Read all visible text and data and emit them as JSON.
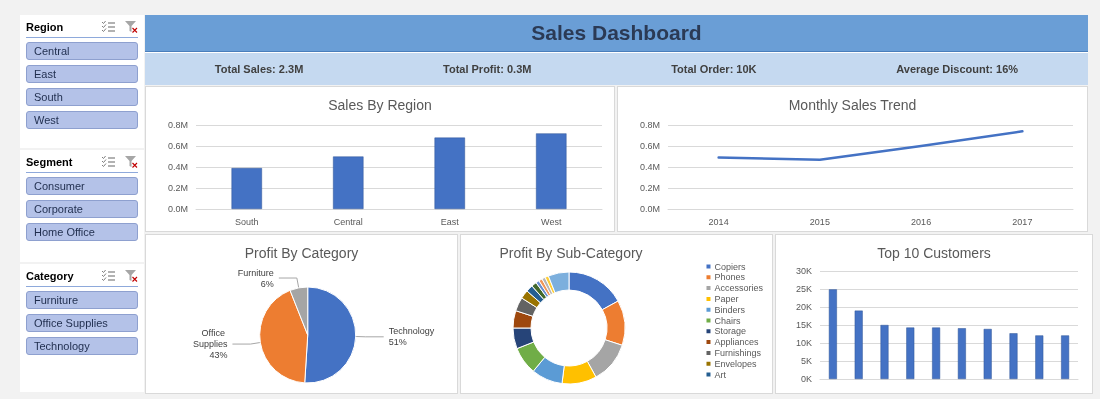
{
  "chart_data": [
    {
      "type": "other",
      "title": "Sales Dashboard",
      "annotations": [
        "Total Sales: 2.3M",
        "Total Profit: 0.3M",
        "Total Order: 10K",
        "Average Discount: 16%"
      ]
    },
    {
      "type": "bar",
      "title": "Sales By Region",
      "categories": [
        "South",
        "Central",
        "East",
        "West"
      ],
      "values": [
        0.39,
        0.5,
        0.68,
        0.72
      ],
      "color": "#4472c4",
      "ylim": [
        0,
        0.8
      ],
      "yticks": [
        {
          "value": 0,
          "label": "0.0M"
        },
        {
          "value": 0.2,
          "label": "0.2M"
        },
        {
          "value": 0.4,
          "label": "0.4M"
        },
        {
          "value": 0.6,
          "label": "0.6M"
        },
        {
          "value": 0.8,
          "label": "0.8M"
        }
      ],
      "grid": "y",
      "legend": false
    },
    {
      "type": "line",
      "title": "Monthly Sales Trend",
      "categories": [
        "2014",
        "2015",
        "2016",
        "2017"
      ],
      "values": [
        0.49,
        0.47,
        0.6,
        0.74
      ],
      "color": "#4472c4",
      "ylim": [
        0,
        0.8
      ],
      "yticks": [
        {
          "value": 0,
          "label": "0.0M"
        },
        {
          "value": 0.2,
          "label": "0.2M"
        },
        {
          "value": 0.4,
          "label": "0.4M"
        },
        {
          "value": 0.6,
          "label": "0.6M"
        },
        {
          "value": 0.8,
          "label": "0.8M"
        }
      ],
      "grid": "y",
      "legend": false,
      "marker": "none",
      "line_style": "solid"
    },
    {
      "type": "pie",
      "title": "Profit By Category",
      "categories": [
        "Technology",
        "Office Supplies",
        "Furniture"
      ],
      "values": [
        51,
        43,
        6
      ],
      "value_labels": [
        "51%",
        "43%",
        "6%"
      ],
      "colors": [
        "#4472c4",
        "#ed7d31",
        "#a5a5a5"
      ],
      "legend": false
    },
    {
      "type": "donut",
      "title": "Profit By Sub-Category",
      "categories": [
        "Copiers",
        "Phones",
        "Accessories",
        "Paper",
        "Binders",
        "Chairs",
        "Storage",
        "Appliances",
        "Furnishings",
        "Envelopes",
        "Art",
        null,
        null,
        null,
        null,
        null,
        null
      ],
      "values": [
        17,
        13,
        12,
        10,
        9,
        8,
        6,
        5,
        4,
        2.5,
        2,
        1.5,
        1,
        1,
        1,
        1,
        6
      ],
      "colors": [
        "#4472c4",
        "#ed7d31",
        "#a5a5a5",
        "#ffc000",
        "#5b9bd5",
        "#70ad47",
        "#264478",
        "#9e480e",
        "#636363",
        "#997300",
        "#255e91",
        "#43682b",
        "#698ed0",
        "#f1975a",
        "#b7b7b7",
        "#ffcd33",
        "#7cafdd"
      ],
      "legend": "right"
    },
    {
      "type": "bar",
      "title": "Top 10 Customers",
      "categories": [
        null,
        null,
        null,
        null,
        null,
        null,
        null,
        null,
        null,
        null
      ],
      "values": [
        24.9,
        19,
        15,
        14.3,
        14.3,
        14.1,
        13.9,
        12.7,
        12.1,
        12.1
      ],
      "color": "#4472c4",
      "ylim": [
        0,
        30
      ],
      "yticks": [
        {
          "value": 0,
          "label": "0K"
        },
        {
          "value": 5,
          "label": "5K"
        },
        {
          "value": 10,
          "label": "10K"
        },
        {
          "value": 15,
          "label": "15K"
        },
        {
          "value": 20,
          "label": "20K"
        },
        {
          "value": 25,
          "label": "25K"
        },
        {
          "value": 30,
          "label": "30K"
        }
      ],
      "grid": "y",
      "legend": false,
      "tick_labels": "y"
    },
    {
      "type": "other",
      "title": "Region",
      "annotations": [
        "Central",
        "East",
        "South",
        "West"
      ]
    },
    {
      "type": "other",
      "title": "Segment",
      "annotations": [
        "Consumer",
        "Corporate",
        "Home Office"
      ]
    },
    {
      "type": "other",
      "title": "Category",
      "annotations": [
        "Furniture",
        "Office Supplies",
        "Technology"
      ]
    }
  ]
}
